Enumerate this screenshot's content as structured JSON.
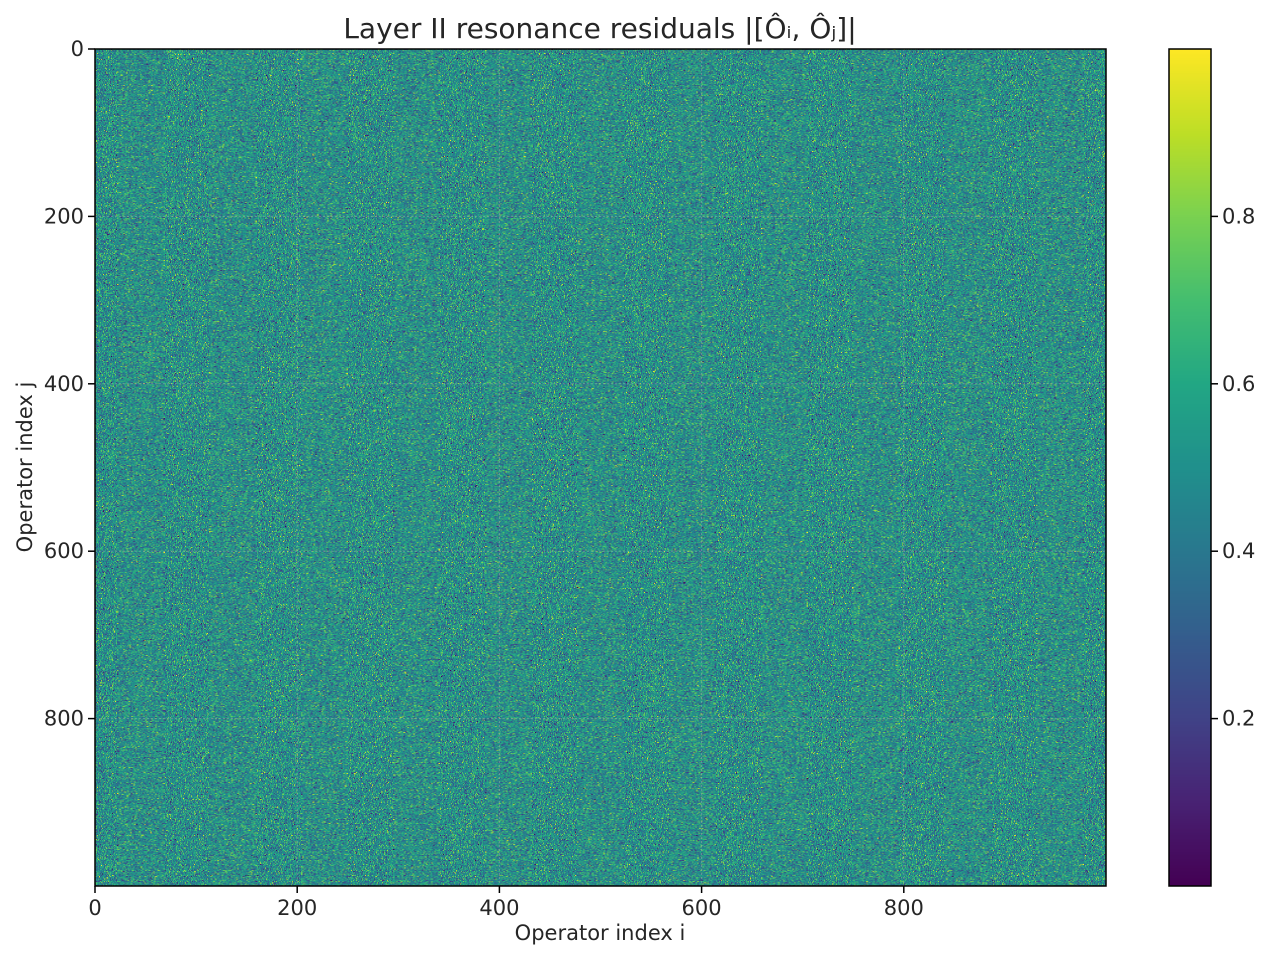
{
  "chart_data": {
    "type": "heatmap",
    "title": "Layer II resonance residuals |[Ôᵢ, Ôⱼ]|",
    "xlabel": "Operator index i",
    "ylabel": "Operator index j",
    "matrix_shape": [
      1000,
      1000
    ],
    "xlim": [
      0,
      1000
    ],
    "ylim": [
      1000,
      0
    ],
    "x_ticks": [
      0,
      200,
      400,
      600,
      800
    ],
    "y_ticks": [
      0,
      200,
      400,
      600,
      800
    ],
    "x_tick_labels": [
      "0",
      "200",
      "400",
      "600",
      "800"
    ],
    "y_tick_labels": [
      "0",
      "200",
      "400",
      "600",
      "800"
    ],
    "grid": true,
    "colormap": "viridis",
    "value_range": [
      0,
      1
    ],
    "colorbar": {
      "ticks": [
        0.2,
        0.4,
        0.6,
        0.8
      ],
      "tick_labels": [
        "0.2",
        "0.4",
        "0.6",
        "0.8"
      ],
      "range": [
        0,
        1
      ]
    },
    "values_description_note_hidden": null,
    "value_distribution": {
      "mean": 0.5,
      "spread": 0.15
    }
  },
  "colors": {
    "background": "#ffffff",
    "axis": "#000000",
    "text": "#262626",
    "grid": "#b0b0b0"
  }
}
